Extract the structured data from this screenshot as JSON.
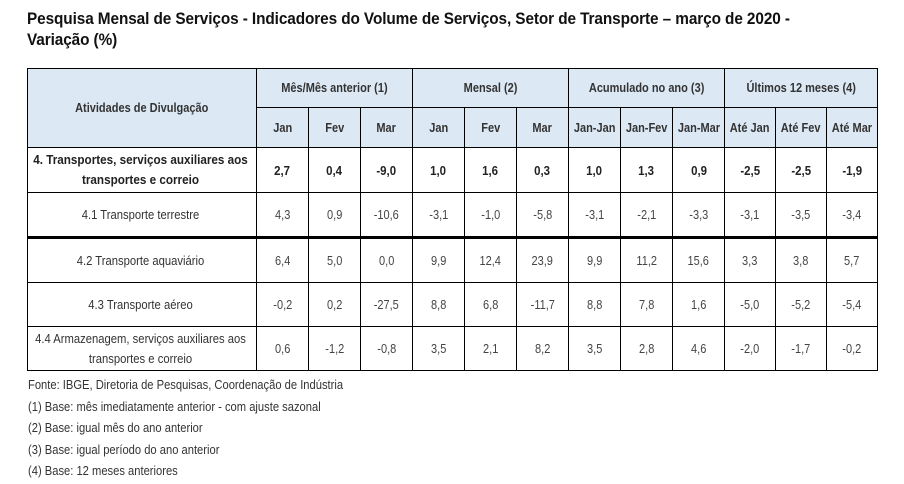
{
  "title": "Pesquisa Mensal de Serviços - Indicadores do Volume de Serviços, Setor de Transporte – março de 2020 - Variação (%)",
  "table": {
    "row_header": "Atividades de Divulgação",
    "groups": [
      {
        "label": "Mês/Mês anterior (1)",
        "columns": [
          "Jan",
          "Fev",
          "Mar"
        ]
      },
      {
        "label": "Mensal (2)",
        "columns": [
          "Jan",
          "Fev",
          "Mar"
        ]
      },
      {
        "label": "Acumulado no ano (3)",
        "columns": [
          "Jan-Jan",
          "Jan-Fev",
          "Jan-Mar"
        ]
      },
      {
        "label": "Últimos 12 meses (4)",
        "columns": [
          "Até Jan",
          "Até Fev",
          "Até Mar"
        ]
      }
    ],
    "rows": [
      {
        "label": "4. Transportes, serviços auxiliares aos transportes e correio",
        "bold": true,
        "values": [
          "2,7",
          "0,4",
          "-9,0",
          "1,0",
          "1,6",
          "0,3",
          "1,0",
          "1,3",
          "0,9",
          "-2,5",
          "-2,5",
          "-1,9"
        ]
      },
      {
        "label": "4.1 Transporte terrestre",
        "bold": false,
        "values": [
          "4,3",
          "0,9",
          "-10,6",
          "-3,1",
          "-1,0",
          "-5,8",
          "-3,1",
          "-2,1",
          "-3,3",
          "-3,1",
          "-3,5",
          "-3,4"
        ]
      },
      {
        "label": "4.2 Transporte aquaviário",
        "bold": false,
        "values": [
          "6,4",
          "5,0",
          "0,0",
          "9,9",
          "12,4",
          "23,9",
          "9,9",
          "11,2",
          "15,6",
          "3,3",
          "3,8",
          "5,7"
        ]
      },
      {
        "label": "4.3 Transporte aéreo",
        "bold": false,
        "values": [
          "-0,2",
          "0,2",
          "-27,5",
          "8,8",
          "6,8",
          "-11,7",
          "8,8",
          "7,8",
          "1,6",
          "-5,0",
          "-5,2",
          "-5,4"
        ]
      },
      {
        "label": "4.4 Armazenagem, serviços auxiliares aos transportes e correio",
        "bold": false,
        "values": [
          "0,6",
          "-1,2",
          "-0,8",
          "3,5",
          "2,1",
          "8,2",
          "3,5",
          "2,8",
          "4,6",
          "-2,0",
          "-1,7",
          "-0,2"
        ]
      }
    ]
  },
  "notes": [
    "Fonte: IBGE, Diretoria de Pesquisas, Coordenação de Indústria",
    "(1) Base: mês imediatamente anterior - com ajuste sazonal",
    "(2) Base: igual mês do ano anterior",
    "(3) Base: igual período do ano anterior",
    "(4) Base: 12 meses anteriores"
  ],
  "colors": {
    "header_bg": "#dce9f5",
    "border": "#000000"
  }
}
